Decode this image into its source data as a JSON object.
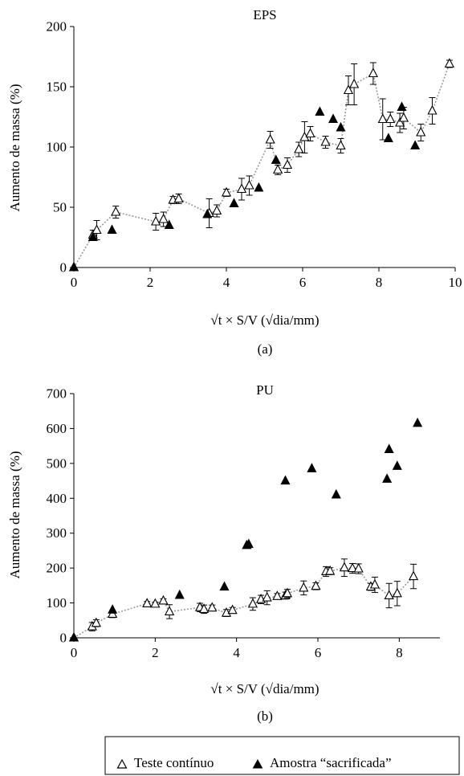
{
  "figure": {
    "legend": {
      "continuous_label": "Teste contínuo",
      "sacrificed_label": "Amostra “sacrificada”"
    }
  },
  "chart_data": [
    {
      "type": "scatter",
      "title": "EPS",
      "caption": "(a)",
      "xlabel": "√t × S/V (√dia/mm)",
      "ylabel": "Aumento de massa (%)",
      "xlim": [
        0,
        10
      ],
      "ylim": [
        0,
        200
      ],
      "xticks": [
        0,
        2,
        4,
        6,
        8,
        10
      ],
      "yticks": [
        0,
        50,
        100,
        150,
        200
      ],
      "grid": false,
      "series": [
        {
          "name": "Teste contínuo",
          "marker": "open-triangle",
          "connected": true,
          "line_style": "dotted",
          "line_color": "#9a9a9a",
          "points": [
            {
              "x": 0.0,
              "y": 0,
              "err": 0
            },
            {
              "x": 0.5,
              "y": 27,
              "err": 4
            },
            {
              "x": 0.6,
              "y": 31,
              "err": 8
            },
            {
              "x": 1.1,
              "y": 46,
              "err": 5
            },
            {
              "x": 2.15,
              "y": 38,
              "err": 7
            },
            {
              "x": 2.35,
              "y": 40,
              "err": 6
            },
            {
              "x": 2.6,
              "y": 56,
              "err": 3
            },
            {
              "x": 2.75,
              "y": 57,
              "err": 4
            },
            {
              "x": 3.55,
              "y": 45,
              "err": 12
            },
            {
              "x": 3.75,
              "y": 47,
              "err": 5
            },
            {
              "x": 4.0,
              "y": 62,
              "err": 3
            },
            {
              "x": 4.4,
              "y": 65,
              "err": 9
            },
            {
              "x": 4.6,
              "y": 68,
              "err": 8
            },
            {
              "x": 5.15,
              "y": 106,
              "err": 7
            },
            {
              "x": 5.35,
              "y": 81,
              "err": 4
            },
            {
              "x": 5.6,
              "y": 85,
              "err": 6
            },
            {
              "x": 5.9,
              "y": 98,
              "err": 6
            },
            {
              "x": 6.05,
              "y": 108,
              "err": 13
            },
            {
              "x": 6.2,
              "y": 111,
              "err": 6
            },
            {
              "x": 6.6,
              "y": 104,
              "err": 5
            },
            {
              "x": 7.0,
              "y": 101,
              "err": 6
            },
            {
              "x": 7.2,
              "y": 147,
              "err": 12
            },
            {
              "x": 7.35,
              "y": 152,
              "err": 17
            },
            {
              "x": 7.85,
              "y": 161,
              "err": 9
            },
            {
              "x": 8.1,
              "y": 123,
              "err": 17
            },
            {
              "x": 8.3,
              "y": 123,
              "err": 6
            },
            {
              "x": 8.55,
              "y": 120,
              "err": 8
            },
            {
              "x": 8.65,
              "y": 124,
              "err": 9
            },
            {
              "x": 9.1,
              "y": 112,
              "err": 7
            },
            {
              "x": 9.4,
              "y": 130,
              "err": 11
            },
            {
              "x": 9.85,
              "y": 169,
              "err": 3
            }
          ]
        },
        {
          "name": "Amostra “sacrificada”",
          "marker": "filled-triangle",
          "connected": false,
          "points": [
            {
              "x": 0.0,
              "y": 0
            },
            {
              "x": 0.5,
              "y": 25
            },
            {
              "x": 1.0,
              "y": 31
            },
            {
              "x": 2.5,
              "y": 35
            },
            {
              "x": 3.5,
              "y": 44
            },
            {
              "x": 4.2,
              "y": 53
            },
            {
              "x": 4.85,
              "y": 66
            },
            {
              "x": 5.3,
              "y": 89
            },
            {
              "x": 6.45,
              "y": 129
            },
            {
              "x": 6.8,
              "y": 123
            },
            {
              "x": 7.0,
              "y": 116
            },
            {
              "x": 8.25,
              "y": 107
            },
            {
              "x": 8.6,
              "y": 133
            },
            {
              "x": 8.95,
              "y": 101
            }
          ]
        }
      ]
    },
    {
      "type": "scatter",
      "title": "PU",
      "caption": "(b)",
      "xlabel": "√t × S/V (√dia/mm)",
      "ylabel": "Aumento de massa (%)",
      "xlim": [
        0,
        9
      ],
      "ylim": [
        0,
        700
      ],
      "xticks": [
        0,
        2,
        4,
        6,
        8
      ],
      "yticks": [
        0,
        100,
        200,
        300,
        400,
        500,
        600,
        700
      ],
      "grid": false,
      "series": [
        {
          "name": "Teste contínuo",
          "marker": "open-triangle",
          "connected": true,
          "line_style": "dotted",
          "line_color": "#9a9a9a",
          "points": [
            {
              "x": 0.0,
              "y": 0,
              "err": 0
            },
            {
              "x": 0.45,
              "y": 32,
              "err": 12
            },
            {
              "x": 0.55,
              "y": 42,
              "err": 10
            },
            {
              "x": 0.95,
              "y": 68,
              "err": 10
            },
            {
              "x": 1.8,
              "y": 98,
              "err": 6
            },
            {
              "x": 2.0,
              "y": 97,
              "err": 5
            },
            {
              "x": 2.2,
              "y": 106,
              "err": 6
            },
            {
              "x": 2.35,
              "y": 75,
              "err": 20
            },
            {
              "x": 3.1,
              "y": 87,
              "err": 12
            },
            {
              "x": 3.2,
              "y": 82,
              "err": 12
            },
            {
              "x": 3.4,
              "y": 86,
              "err": 8
            },
            {
              "x": 3.75,
              "y": 71,
              "err": 10
            },
            {
              "x": 3.9,
              "y": 79,
              "err": 8
            },
            {
              "x": 4.4,
              "y": 97,
              "err": 18
            },
            {
              "x": 4.6,
              "y": 110,
              "err": 12
            },
            {
              "x": 4.75,
              "y": 115,
              "err": 20
            },
            {
              "x": 5.0,
              "y": 119,
              "err": 8
            },
            {
              "x": 5.2,
              "y": 121,
              "err": 10
            },
            {
              "x": 5.25,
              "y": 127,
              "err": 12
            },
            {
              "x": 5.65,
              "y": 143,
              "err": 20
            },
            {
              "x": 5.95,
              "y": 148,
              "err": 10
            },
            {
              "x": 6.2,
              "y": 190,
              "err": 14
            },
            {
              "x": 6.3,
              "y": 191,
              "err": 10
            },
            {
              "x": 6.65,
              "y": 201,
              "err": 25
            },
            {
              "x": 6.85,
              "y": 199,
              "err": 14
            },
            {
              "x": 7.0,
              "y": 198,
              "err": 14
            },
            {
              "x": 7.3,
              "y": 146,
              "err": 10
            },
            {
              "x": 7.4,
              "y": 152,
              "err": 22
            },
            {
              "x": 7.75,
              "y": 121,
              "err": 35
            },
            {
              "x": 7.95,
              "y": 127,
              "err": 35
            },
            {
              "x": 8.35,
              "y": 176,
              "err": 35
            }
          ]
        },
        {
          "name": "Amostra “sacrificada”",
          "marker": "filled-triangle",
          "connected": false,
          "points": [
            {
              "x": 0.0,
              "y": 0
            },
            {
              "x": 0.95,
              "y": 80
            },
            {
              "x": 2.6,
              "y": 122
            },
            {
              "x": 3.7,
              "y": 146
            },
            {
              "x": 4.25,
              "y": 265
            },
            {
              "x": 4.3,
              "y": 268
            },
            {
              "x": 5.2,
              "y": 450
            },
            {
              "x": 5.85,
              "y": 485
            },
            {
              "x": 6.45,
              "y": 410
            },
            {
              "x": 7.7,
              "y": 455
            },
            {
              "x": 7.75,
              "y": 540
            },
            {
              "x": 7.95,
              "y": 492
            },
            {
              "x": 8.45,
              "y": 615
            }
          ]
        }
      ]
    }
  ]
}
